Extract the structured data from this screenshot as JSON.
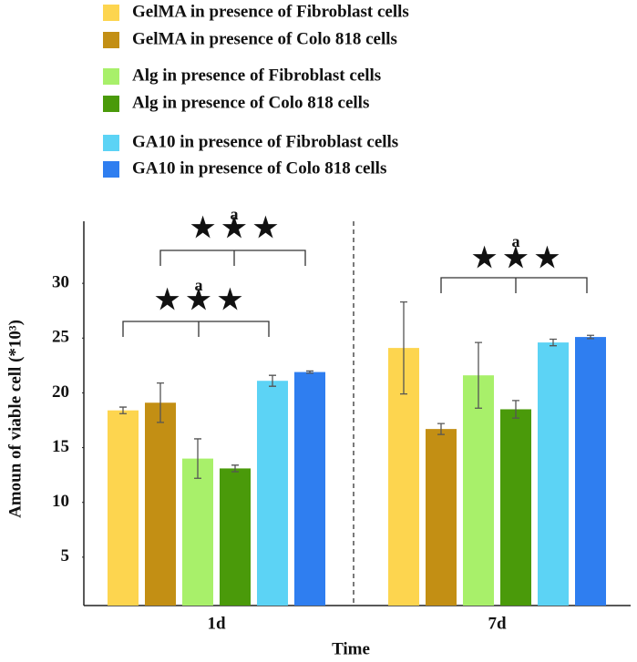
{
  "chart_data": {
    "type": "bar",
    "categories": [
      "1d",
      "7d"
    ],
    "series": [
      {
        "name": "GelMA in presence of Fibroblast cells",
        "color": "#fdd54f",
        "values": [
          18.4,
          24.1
        ],
        "errors": [
          0.3,
          4.2
        ]
      },
      {
        "name": "GelMA in presence of Colo 818 cells",
        "color": "#c38f14",
        "values": [
          19.1,
          16.7
        ],
        "errors": [
          1.8,
          0.5
        ]
      },
      {
        "name": "Alg in presence of Fibroblast cells",
        "color": "#a8f06a",
        "values": [
          14.0,
          21.6
        ],
        "errors": [
          1.8,
          3.0
        ]
      },
      {
        "name": "Alg in presence of Colo 818 cells",
        "color": "#4a9a0a",
        "values": [
          13.1,
          18.5
        ],
        "errors": [
          0.3,
          0.8
        ]
      },
      {
        "name": "GA10 in presence of Fibroblast cells",
        "color": "#5cd3f5",
        "values": [
          21.1,
          24.6
        ],
        "errors": [
          0.5,
          0.3
        ]
      },
      {
        "name": "GA10 in presence of Colo 818 cells",
        "color": "#2f7ef0",
        "values": [
          21.9,
          25.1
        ],
        "errors": [
          0.1,
          0.15
        ]
      }
    ],
    "ylim": [
      0,
      35
    ],
    "yticks": [
      5,
      10,
      15,
      20,
      25,
      30
    ],
    "ylabel": "Amoun of viable cell (*10³)",
    "xlabel": "Time",
    "annotations": [
      "a",
      "★ ★ ★",
      "a",
      "★ ★ ★",
      "a",
      "★ ★ ★"
    ]
  }
}
